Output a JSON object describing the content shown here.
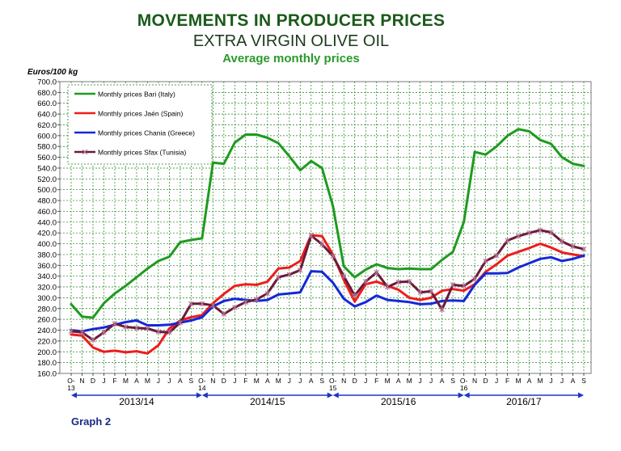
{
  "title": "MOVEMENTS IN PRODUCER PRICES",
  "subtitle": "EXTRA VIRGIN OLIVE OIL",
  "subtitle2": "Average monthly prices",
  "footer": "Graph 2",
  "colors": {
    "bari": "#1f9a1f",
    "jaen": "#ee1c1c",
    "chania": "#1428d8",
    "sfax": "#6b1a3a",
    "grid": "#1f7f1f",
    "arrow": "#1e34c8"
  },
  "chart_data": {
    "type": "line",
    "ylabel": "Euros/100 kg",
    "ylim": [
      160,
      700
    ],
    "ystep": 20,
    "x": [
      "O-13",
      "N",
      "D",
      "J",
      "F",
      "M",
      "A",
      "M",
      "J",
      "J",
      "A",
      "S",
      "O-14",
      "N",
      "D",
      "J",
      "F",
      "M",
      "A",
      "M",
      "J",
      "J",
      "A",
      "S",
      "O-15",
      "N",
      "D",
      "J",
      "F",
      "M",
      "A",
      "M",
      "J",
      "J",
      "A",
      "S",
      "O-16",
      "N",
      "D",
      "J",
      "F",
      "M",
      "A",
      "M",
      "J",
      "J",
      "A",
      "S"
    ],
    "seasons": [
      {
        "label": "2013/14",
        "from": 0,
        "to": 12
      },
      {
        "label": "2014/15",
        "from": 12,
        "to": 24
      },
      {
        "label": "2015/16",
        "from": 24,
        "to": 36
      },
      {
        "label": "2016/17",
        "from": 36,
        "to": 47
      }
    ],
    "legend_position": "top-left",
    "grid": true,
    "series": [
      {
        "name": "Monthly prices Bari (Italy)",
        "color": "#1f9a1f",
        "marker": "none",
        "values": [
          288,
          265,
          263,
          290,
          308,
          322,
          338,
          354,
          368,
          376,
          403,
          407,
          410,
          550,
          548,
          587,
          602,
          602,
          596,
          586,
          562,
          536,
          553,
          540,
          470,
          358,
          338,
          352,
          362,
          355,
          353,
          354,
          353,
          353,
          370,
          385,
          440,
          570,
          565,
          580,
          600,
          612,
          608,
          592,
          585,
          560,
          548,
          544
        ]
      },
      {
        "name": "Monthly prices Jaén (Spain)",
        "color": "#ee1c1c",
        "marker": "none",
        "values": [
          232,
          230,
          208,
          200,
          202,
          199,
          201,
          197,
          212,
          243,
          258,
          264,
          268,
          290,
          307,
          322,
          325,
          324,
          330,
          354,
          356,
          368,
          416,
          414,
          380,
          333,
          293,
          325,
          330,
          322,
          315,
          300,
          296,
          300,
          313,
          316,
          313,
          325,
          348,
          362,
          378,
          385,
          392,
          400,
          393,
          384,
          380,
          377
        ]
      },
      {
        "name": "Monthly prices Chania (Greece)",
        "color": "#1428d8",
        "marker": "none",
        "values": [
          240,
          238,
          242,
          245,
          250,
          255,
          258,
          249,
          249,
          250,
          254,
          258,
          264,
          284,
          294,
          298,
          296,
          294,
          296,
          306,
          308,
          310,
          349,
          348,
          328,
          298,
          284,
          292,
          304,
          296,
          294,
          292,
          288,
          289,
          294,
          295,
          294,
          324,
          345,
          345,
          346,
          356,
          364,
          372,
          375,
          368,
          372,
          378
        ]
      },
      {
        "name": "Monthly prices Sfax (Tunisia)",
        "color": "#6b1a3a",
        "marker": "x",
        "values": [
          238,
          236,
          222,
          236,
          252,
          246,
          244,
          243,
          237,
          236,
          254,
          289,
          289,
          286,
          270,
          282,
          292,
          297,
          308,
          338,
          343,
          351,
          415,
          399,
          377,
          340,
          304,
          330,
          347,
          320,
          329,
          330,
          310,
          312,
          278,
          324,
          322,
          335,
          368,
          378,
          406,
          414,
          420,
          425,
          421,
          404,
          395,
          390
        ]
      }
    ]
  }
}
